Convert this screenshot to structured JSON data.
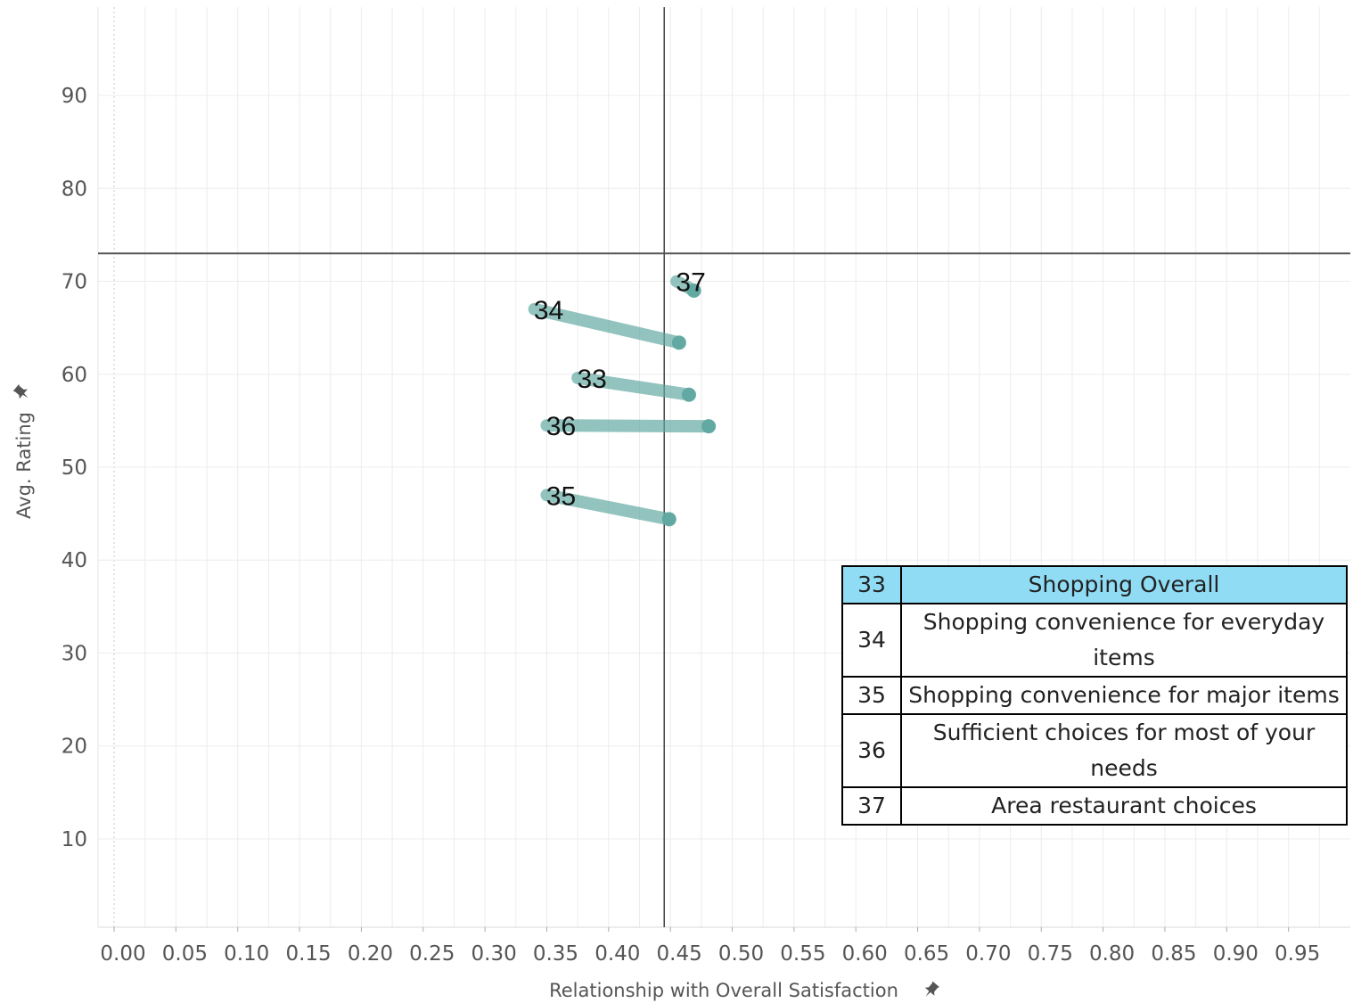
{
  "chart_data": {
    "type": "scatter",
    "xlabel": "Relationship with Overall Satisfaction",
    "ylabel": "Avg. Rating",
    "pin_icon": "pin-icon",
    "xlim": [
      -0.013,
      1.0
    ],
    "ylim": [
      0.5,
      99.5
    ],
    "x_ticks": [
      "0.00",
      "0.05",
      "0.10",
      "0.15",
      "0.20",
      "0.25",
      "0.30",
      "0.35",
      "0.40",
      "0.45",
      "0.50",
      "0.55",
      "0.60",
      "0.65",
      "0.70",
      "0.75",
      "0.80",
      "0.85",
      "0.90",
      "0.95"
    ],
    "y_ticks": [
      "10",
      "20",
      "30",
      "40",
      "50",
      "60",
      "70",
      "80",
      "90"
    ],
    "reference_lines": {
      "x": 0.445,
      "y": 73
    },
    "marker_color": "#5fa8a0",
    "grid": true,
    "points": [
      {
        "label": "37",
        "x_from": 0.455,
        "y_from": 70.0,
        "x_to": 0.469,
        "y_to": 69.0
      },
      {
        "label": "34",
        "x_from": 0.34,
        "y_from": 67.0,
        "x_to": 0.457,
        "y_to": 63.4
      },
      {
        "label": "33",
        "x_from": 0.375,
        "y_from": 59.6,
        "x_to": 0.465,
        "y_to": 57.8
      },
      {
        "label": "36",
        "x_from": 0.35,
        "y_from": 54.5,
        "x_to": 0.481,
        "y_to": 54.4
      },
      {
        "label": "35",
        "x_from": 0.35,
        "y_from": 47.0,
        "x_to": 0.449,
        "y_to": 44.4
      }
    ]
  },
  "legend": {
    "rows": [
      {
        "num": "33",
        "text": "Shopping Overall",
        "highlight": true
      },
      {
        "num": "34",
        "text": "Shopping convenience for everyday items",
        "highlight": false
      },
      {
        "num": "35",
        "text": "Shopping convenience for major items",
        "highlight": false
      },
      {
        "num": "36",
        "text": "Sufficient choices for most of your needs",
        "highlight": false
      },
      {
        "num": "37",
        "text": "Area restaurant choices",
        "highlight": false
      }
    ]
  }
}
